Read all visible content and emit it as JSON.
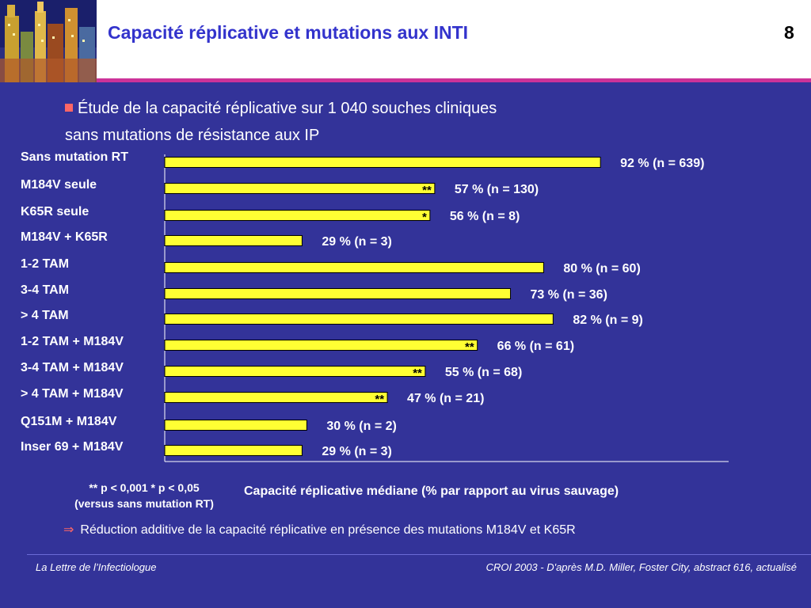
{
  "header": {
    "title": "Capacité réplicative et mutations aux INTI",
    "slide_number": "8",
    "accent_color": "#cc3399",
    "logo": "city-skyline-logo"
  },
  "bullet": {
    "line1": "Étude de la capacité réplicative sur 1 040  souches cliniques",
    "line2": "sans mutations de résistance aux IP"
  },
  "chart_data": {
    "type": "bar",
    "orientation": "horizontal",
    "categories": [
      "Sans mutation RT",
      "M184V seule",
      "K65R seule",
      "M184V + K65R",
      "1-2 TAM",
      "3-4 TAM",
      "> 4 TAM",
      "1-2 TAM + M184V",
      "3-4 TAM + M184V",
      "> 4 TAM + M184V",
      "Q151M + M184V",
      "Inser 69 + M184V"
    ],
    "values": [
      92,
      57,
      56,
      29,
      80,
      73,
      82,
      66,
      55,
      47,
      30,
      29
    ],
    "data_labels": [
      "92 % (n = 639)",
      "57 % (n = 130)",
      "56 % (n = 8)",
      "29 % (n = 3)",
      "80 % (n = 60)",
      "73 % (n = 36)",
      "82 % (n = 9)",
      "66 % (n = 61)",
      "55 % (n = 68)",
      "47 % (n = 21)",
      "30 % (n = 2)",
      "29 % (n = 3)"
    ],
    "significance": [
      "",
      "**",
      "*",
      "",
      "",
      "",
      "",
      "**",
      "**",
      "**",
      "",
      ""
    ],
    "xlabel": "Capacité réplicative médiane (% par rapport au virus sauvage)",
    "bar_color": "#ffff33",
    "xlim": [
      0,
      100
    ]
  },
  "note": {
    "line1": "** p < 0,001  * p < 0,05",
    "line2": "(versus sans mutation RT)"
  },
  "conclusion": "Réduction additive de la capacité réplicative en présence des mutations M184V et K65R",
  "footer": {
    "left": "La Lettre de l’Infectiologue",
    "right": "CROI 2003 - D'après M.D. Miller, Foster City, abstract 616, actualisé"
  }
}
